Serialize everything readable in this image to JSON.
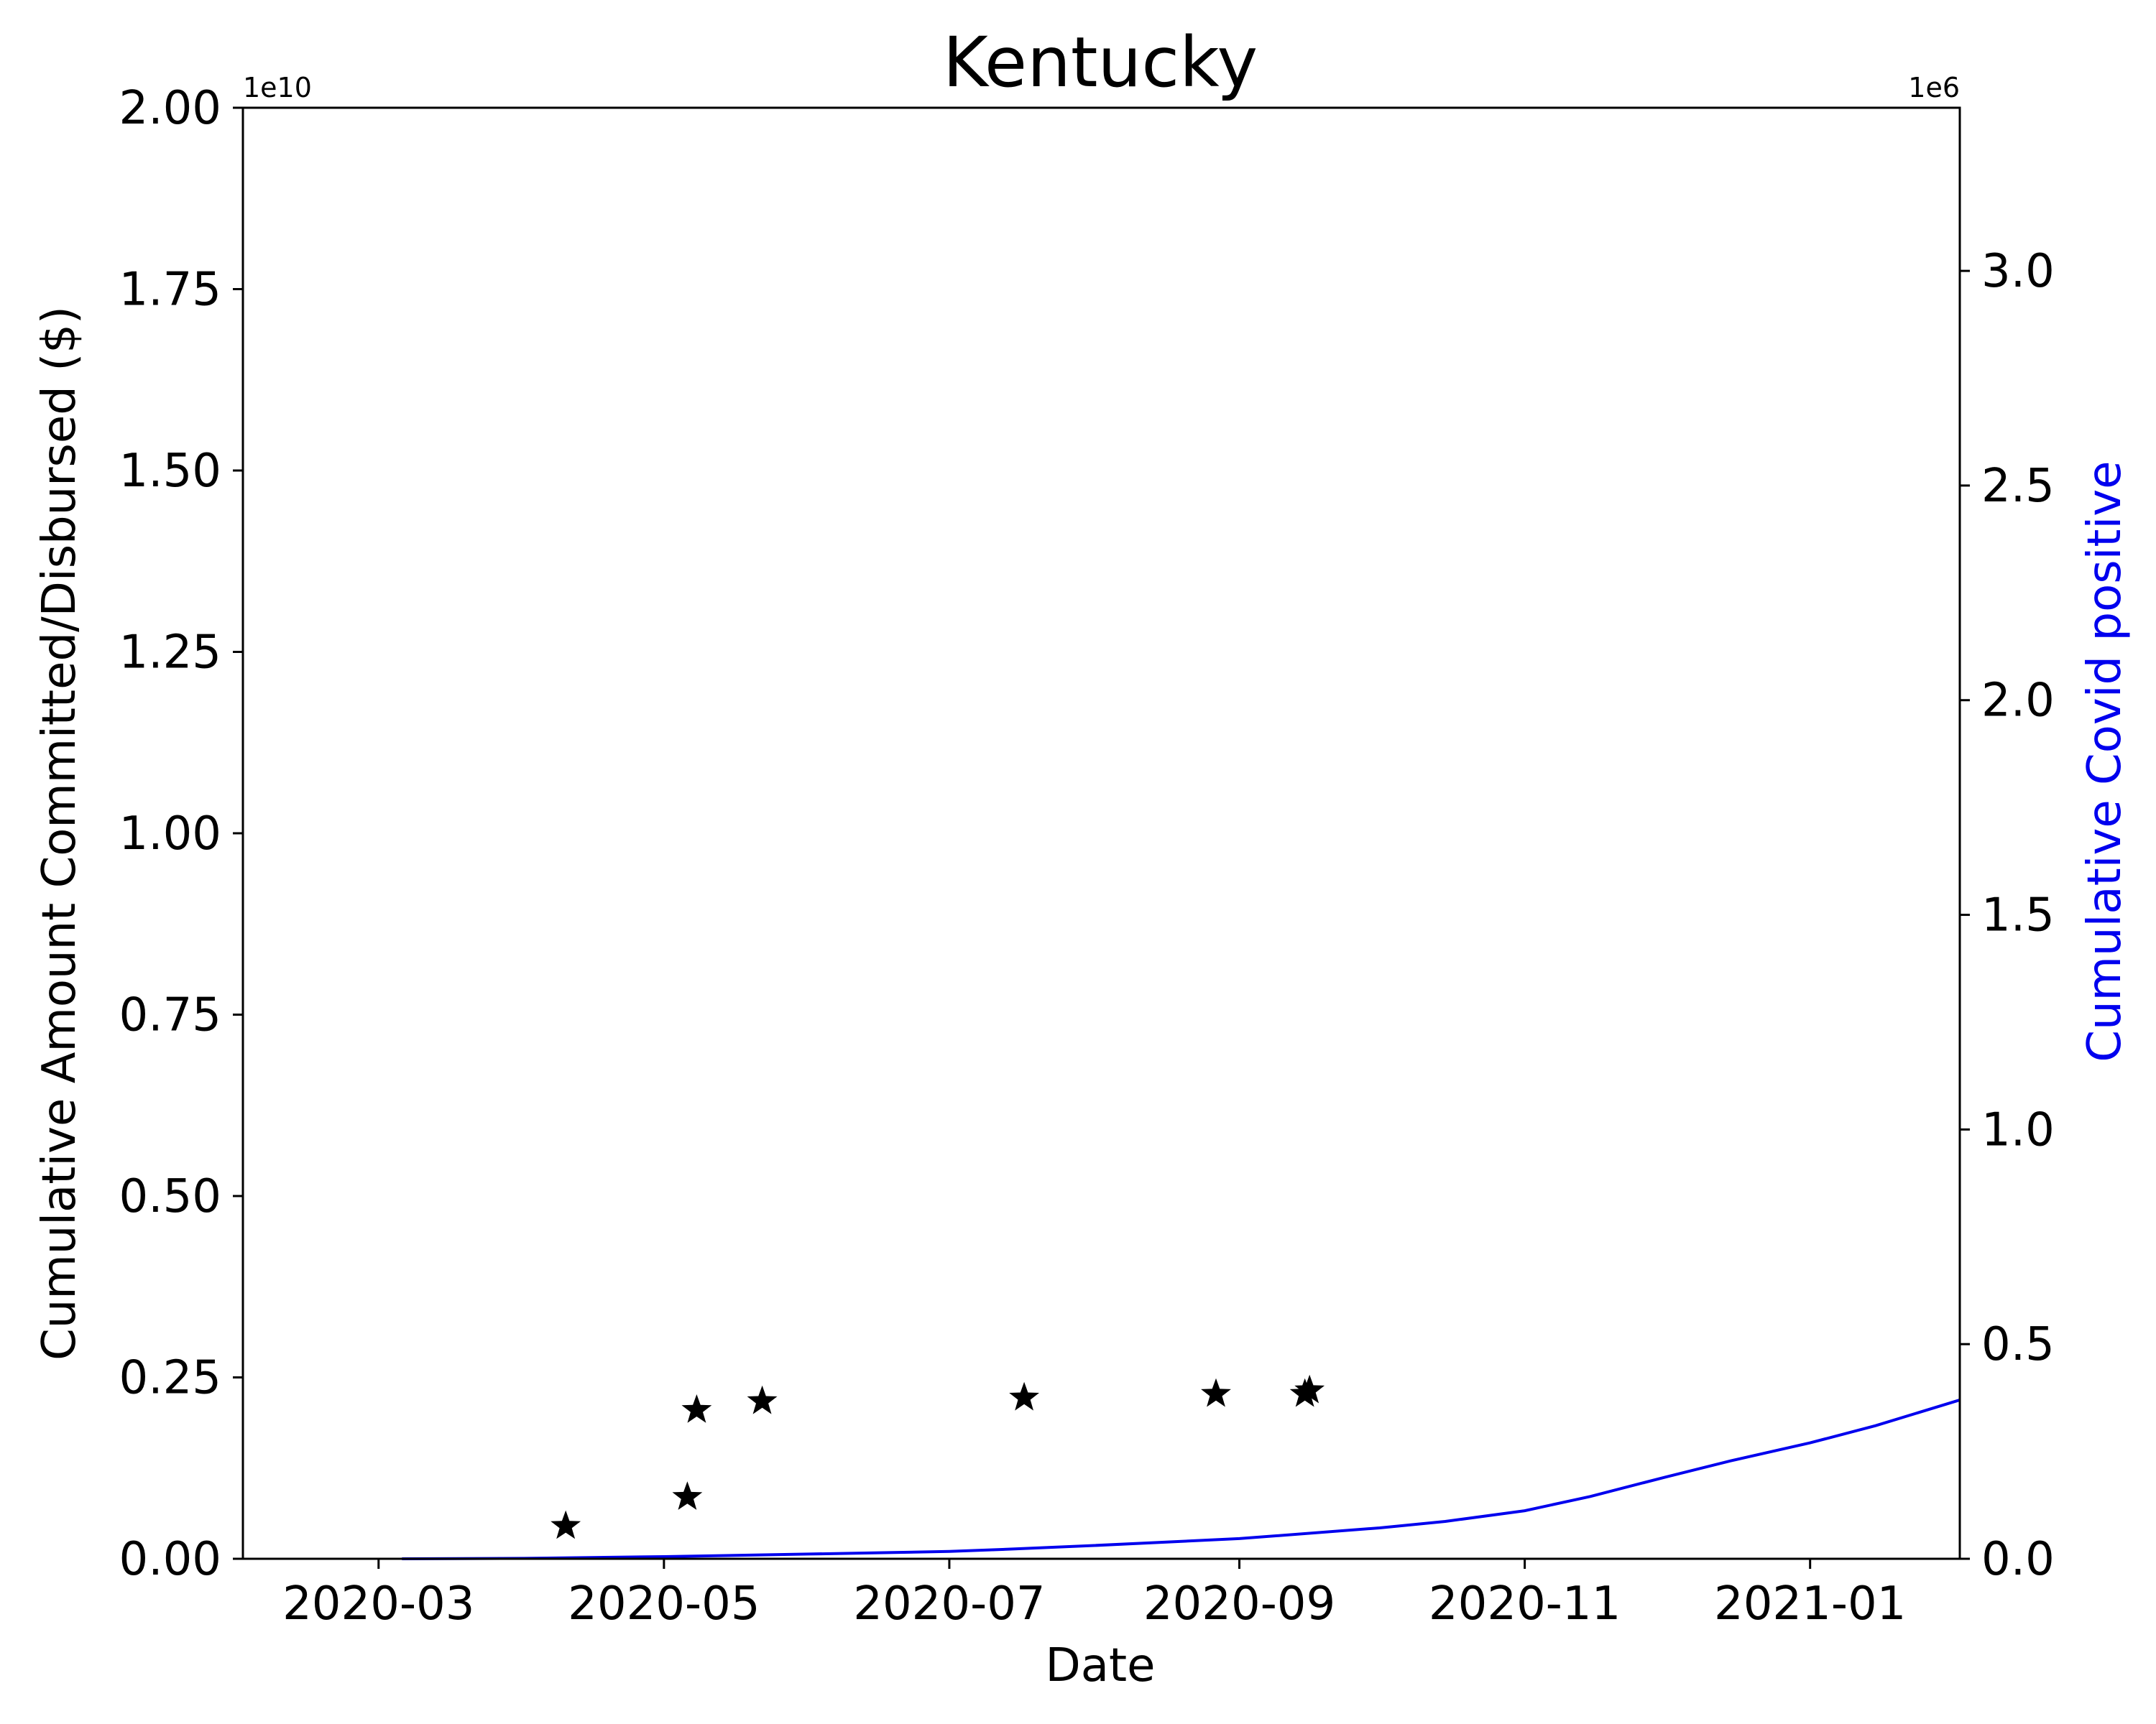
{
  "chart_data": {
    "type": "scatter",
    "title": "Kentucky",
    "xlabel": "Date",
    "ylabel": "Cumulative Amount Committed/Disbursed ($)",
    "y2label": "Cumulative Covid positive",
    "y_offset_label": "1e10",
    "y2_offset_label": "1e6",
    "x_tick_labels": [
      "2020-03",
      "2020-05",
      "2020-07",
      "2020-09",
      "2020-11",
      "2021-01"
    ],
    "x_tick_dates": [
      "2020-03-01",
      "2020-05-01",
      "2020-07-01",
      "2020-09-01",
      "2020-11-01",
      "2021-01-01"
    ],
    "xlim": [
      "2020-02-01",
      "2021-02-02"
    ],
    "y_tick_labels": [
      "0.00",
      "0.25",
      "0.50",
      "0.75",
      "1.00",
      "1.25",
      "1.50",
      "1.75",
      "2.00"
    ],
    "y_tick_values": [
      0,
      0.25,
      0.5,
      0.75,
      1.0,
      1.25,
      1.5,
      1.75,
      2.0
    ],
    "ylim": [
      0,
      2.0
    ],
    "y2_tick_labels": [
      "0.0",
      "0.5",
      "1.0",
      "1.5",
      "2.0",
      "2.5",
      "3.0"
    ],
    "y2_tick_values": [
      0,
      0.5,
      1.0,
      1.5,
      2.0,
      2.5,
      3.0
    ],
    "y2lim": [
      0,
      3.38
    ],
    "grid": false,
    "series": [
      {
        "marker": "star",
        "color": "#000000",
        "axis": "left",
        "x": [
          "2020-04-10",
          "2020-05-06",
          "2020-05-08",
          "2020-05-22",
          "2020-07-17",
          "2020-08-27",
          "2020-09-15",
          "2020-09-16"
        ],
        "y": [
          0.045,
          0.085,
          0.205,
          0.217,
          0.222,
          0.227,
          0.227,
          0.232
        ]
      },
      {
        "marker": "line",
        "color": "#0000ee",
        "axis": "right",
        "x": [
          "2020-03-06",
          "2020-04-01",
          "2020-05-01",
          "2020-06-01",
          "2020-07-01",
          "2020-07-15",
          "2020-08-01",
          "2020-09-01",
          "2020-10-01",
          "2020-10-15",
          "2020-11-01",
          "2020-11-15",
          "2020-12-01",
          "2020-12-15",
          "2021-01-01",
          "2021-01-15",
          "2021-02-02"
        ],
        "y": [
          0.0,
          0.001,
          0.005,
          0.011,
          0.017,
          0.023,
          0.031,
          0.047,
          0.072,
          0.087,
          0.112,
          0.145,
          0.19,
          0.228,
          0.27,
          0.31,
          0.37
        ]
      }
    ]
  }
}
